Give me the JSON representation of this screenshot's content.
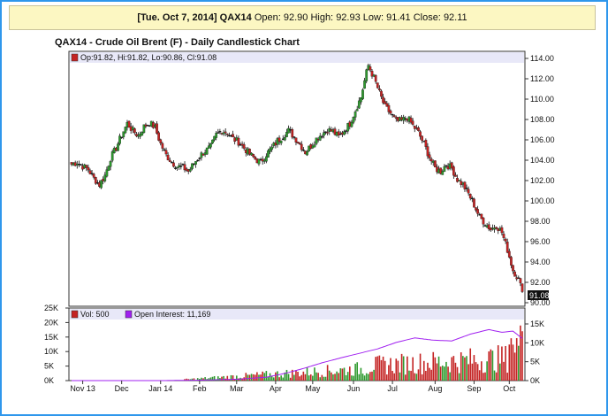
{
  "header": {
    "date": "[Tue. Oct 7, 2014]",
    "symbol": "QAX14",
    "open_label": "Open:",
    "open": "92.90",
    "high_label": "High:",
    "high": "92.93",
    "low_label": "Low:",
    "low": "91.41",
    "close_label": "Close:",
    "close": "92.11"
  },
  "chart_title": "QAX14 - Crude Oil Brent (F) - Daily Candlestick Chart",
  "ohlc_legend": "Op:91.82, Hi:91.82, Lo:90.86, Cl:91.08",
  "last_price_label": "91.08",
  "volume_legend": "Vol: 500",
  "oi_legend": "Open Interest: 11,169",
  "colors": {
    "up": "#2e9a2e",
    "down": "#c42323",
    "oi_line": "#a020f0",
    "frame": "#2f97ec",
    "header_bg": "#fcf7c2"
  },
  "chart_data": {
    "type": "candlestick",
    "x_labels": [
      "Nov 13",
      "Dec",
      "Jan 14",
      "Feb",
      "Mar",
      "Apr",
      "May",
      "Jun",
      "Jul",
      "Aug",
      "Sep",
      "Oct"
    ],
    "price_axis": {
      "ticks": [
        "114.00",
        "112.00",
        "110.00",
        "108.00",
        "106.00",
        "104.00",
        "102.00",
        "100.00",
        "98.00",
        "96.00",
        "94.00",
        "92.00",
        "90.00"
      ],
      "ylim": [
        90,
        114
      ]
    },
    "volume_axis_left": {
      "ticks": [
        "25K",
        "20K",
        "15K",
        "10K",
        "5K",
        "0K"
      ],
      "ylim": [
        0,
        25000
      ]
    },
    "volume_axis_right": {
      "ticks": [
        "15K",
        "10K",
        "5K",
        "0K"
      ]
    },
    "close_anchors": [
      [
        0,
        103.6
      ],
      [
        3,
        103.8
      ],
      [
        6,
        103.4
      ],
      [
        9,
        103.1
      ],
      [
        12,
        102.2
      ],
      [
        15,
        101.6
      ],
      [
        18,
        102.5
      ],
      [
        21,
        104.2
      ],
      [
        24,
        105.2
      ],
      [
        27,
        106.5
      ],
      [
        30,
        107.6
      ],
      [
        33,
        106.9
      ],
      [
        36,
        106.4
      ],
      [
        39,
        107.3
      ],
      [
        42,
        107.7
      ],
      [
        45,
        107.2
      ],
      [
        48,
        105.6
      ],
      [
        51,
        104.5
      ],
      [
        54,
        103.8
      ],
      [
        57,
        103.4
      ],
      [
        60,
        103.3
      ],
      [
        63,
        102.9
      ],
      [
        66,
        103.7
      ],
      [
        69,
        104.4
      ],
      [
        72,
        104.9
      ],
      [
        75,
        105.3
      ],
      [
        78,
        106.5
      ],
      [
        81,
        106.9
      ],
      [
        84,
        106.7
      ],
      [
        87,
        106.1
      ],
      [
        90,
        105.8
      ],
      [
        93,
        105.2
      ],
      [
        96,
        104.6
      ],
      [
        99,
        104.1
      ],
      [
        102,
        103.8
      ],
      [
        105,
        104.6
      ],
      [
        108,
        105.2
      ],
      [
        111,
        105.9
      ],
      [
        114,
        106.4
      ],
      [
        117,
        106.9
      ],
      [
        120,
        106.3
      ],
      [
        123,
        105.6
      ],
      [
        126,
        104.8
      ],
      [
        129,
        105.4
      ],
      [
        132,
        106.1
      ],
      [
        135,
        106.6
      ],
      [
        138,
        107.0
      ],
      [
        141,
        106.8
      ],
      [
        144,
        106.3
      ],
      [
        147,
        106.9
      ],
      [
        150,
        107.6
      ],
      [
        153,
        108.9
      ],
      [
        156,
        110.2
      ],
      [
        159,
        112.6
      ],
      [
        160,
        113.3
      ],
      [
        163,
        112.1
      ],
      [
        166,
        110.6
      ],
      [
        169,
        109.2
      ],
      [
        172,
        108.6
      ],
      [
        175,
        107.8
      ],
      [
        178,
        107.9
      ],
      [
        181,
        108.2
      ],
      [
        184,
        107.4
      ],
      [
        187,
        106.7
      ],
      [
        190,
        105.6
      ],
      [
        193,
        104.3
      ],
      [
        196,
        103.2
      ],
      [
        199,
        102.9
      ],
      [
        202,
        103.6
      ],
      [
        205,
        103.2
      ],
      [
        208,
        102.1
      ],
      [
        211,
        101.6
      ],
      [
        214,
        100.7
      ],
      [
        217,
        99.6
      ],
      [
        220,
        98.4
      ],
      [
        223,
        97.8
      ],
      [
        226,
        97.2
      ],
      [
        229,
        97.6
      ],
      [
        232,
        96.9
      ],
      [
        235,
        95.2
      ],
      [
        238,
        93.2
      ],
      [
        241,
        92.3
      ],
      [
        243,
        91.08
      ]
    ],
    "oi_anchors": [
      [
        0,
        0
      ],
      [
        50,
        0
      ],
      [
        70,
        120
      ],
      [
        90,
        380
      ],
      [
        105,
        900
      ],
      [
        115,
        1900
      ],
      [
        125,
        3200
      ],
      [
        135,
        4700
      ],
      [
        145,
        6000
      ],
      [
        155,
        7200
      ],
      [
        165,
        8400
      ],
      [
        175,
        10100
      ],
      [
        185,
        11300
      ],
      [
        195,
        10700
      ],
      [
        205,
        10500
      ],
      [
        215,
        12300
      ],
      [
        225,
        13500
      ],
      [
        232,
        12800
      ],
      [
        238,
        13100
      ],
      [
        243,
        11169
      ]
    ],
    "volume_note": "daily bars, mostly 2K-13K from Mar, peaking near 20K in Oct"
  }
}
